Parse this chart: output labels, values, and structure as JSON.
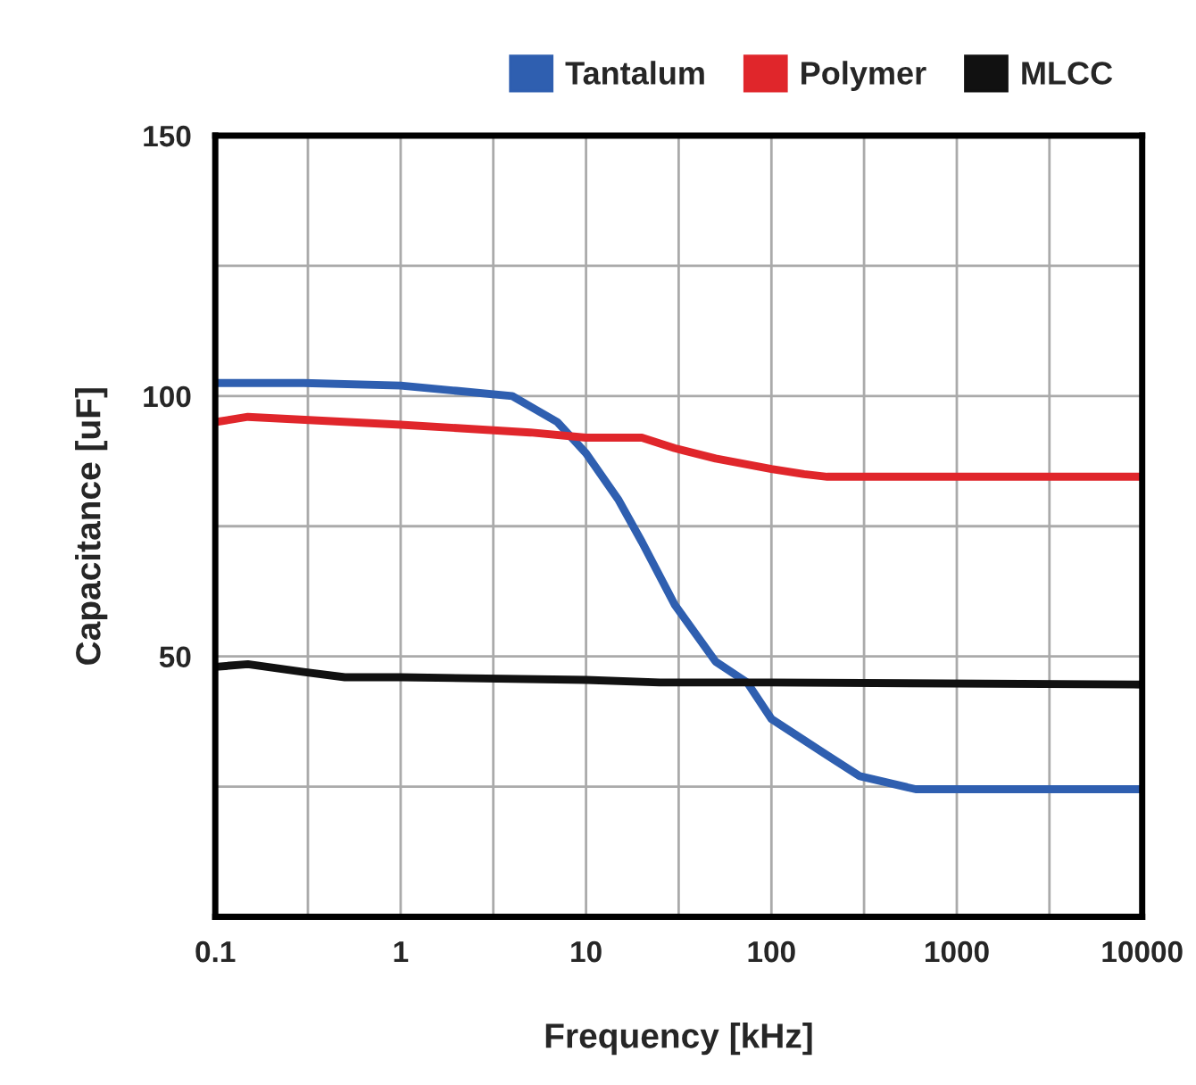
{
  "chart_data": {
    "type": "line",
    "xlabel": "Frequency [kHz]",
    "ylabel": "Capacitance [uF]",
    "log": "x",
    "xlim": [
      0.1,
      10000
    ],
    "ylim": [
      0,
      150
    ],
    "xticks": [
      0.1,
      {
        "value": 0.316,
        "label": null
      },
      1,
      {
        "value": 3.16,
        "label": null
      },
      10,
      {
        "value": 31.6,
        "label": null
      },
      100,
      {
        "value": 316,
        "label": null
      },
      1000,
      {
        "value": 3160,
        "label": null
      },
      10000
    ],
    "yticks": [
      {
        "value": 0,
        "label": null
      },
      {
        "value": 25,
        "label": null
      },
      50,
      {
        "value": 75,
        "label": null
      },
      100,
      {
        "value": 125,
        "label": null
      },
      150
    ],
    "grid": true,
    "legend": "top right",
    "line_style": "solid",
    "marker": "none",
    "series": [
      {
        "name": "Tantalum",
        "color": "#2f5fb0",
        "x": [
          0.1,
          0.3,
          1,
          2,
          4,
          5,
          7,
          10,
          15,
          20,
          30,
          50,
          74,
          100,
          200,
          300,
          600,
          1000,
          10000
        ],
        "values": [
          102.5,
          102.5,
          102,
          101,
          100,
          98,
          95,
          89,
          80,
          72,
          60,
          49,
          45,
          38,
          31,
          27,
          24.5,
          24.5,
          24.5
        ]
      },
      {
        "name": "Polymer",
        "color": "#e0262b",
        "x": [
          0.1,
          0.15,
          1,
          5,
          10,
          20,
          30,
          50,
          100,
          150,
          200,
          10000
        ],
        "values": [
          95,
          96,
          94.5,
          93,
          92,
          92,
          90,
          88,
          86,
          85,
          84.5,
          84.5
        ]
      },
      {
        "name": "MLCC",
        "color": "#111111",
        "x": [
          0.1,
          0.15,
          0.3,
          0.5,
          1,
          10,
          25,
          100,
          10000
        ],
        "values": [
          48,
          48.5,
          47,
          46,
          46,
          45.5,
          45,
          45,
          44.6
        ]
      }
    ]
  }
}
